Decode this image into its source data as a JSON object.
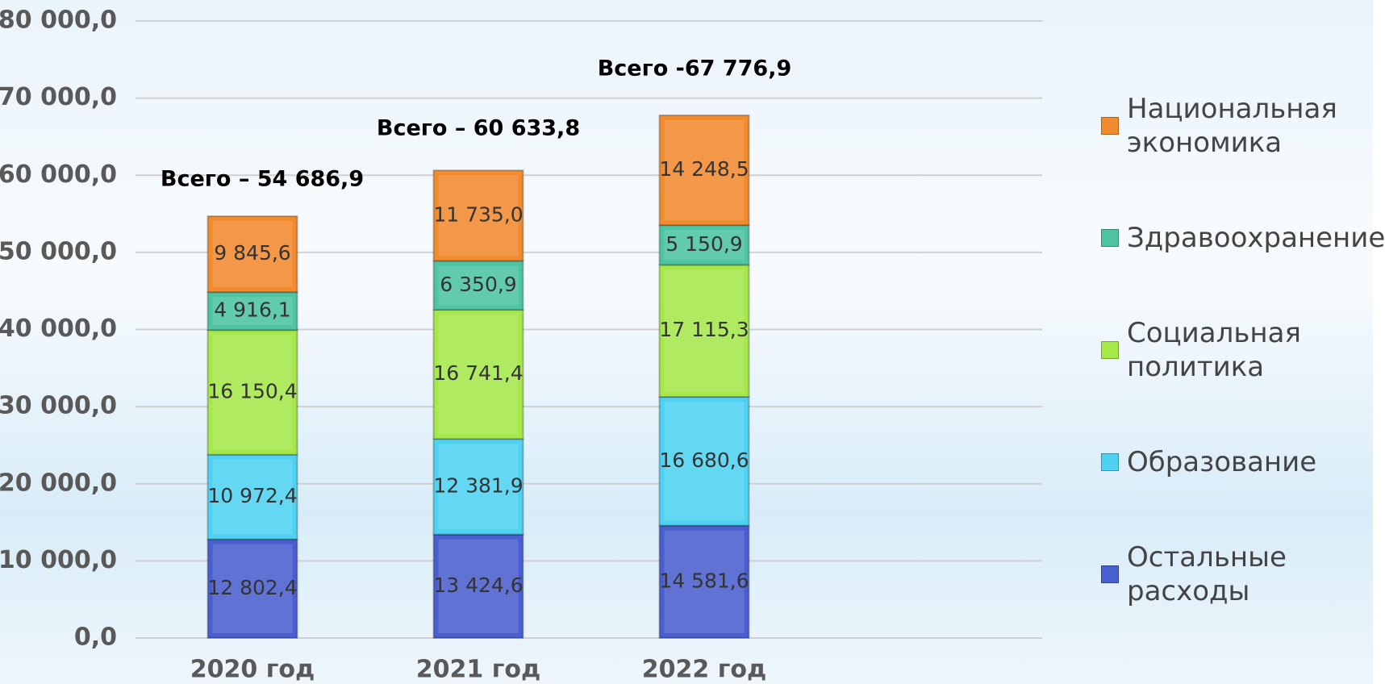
{
  "chart_data": {
    "type": "stacked_bar",
    "categories": [
      "2020 год",
      "2021 год",
      "2022 год"
    ],
    "series": [
      {
        "name": "Остальные расходы",
        "color": "#4a5fcf",
        "values": [
          12802.4,
          13424.6,
          14581.6
        ],
        "value_labels": [
          "12 802,4",
          "13 424,6",
          "14 581,6"
        ]
      },
      {
        "name": "Образование",
        "color": "#4fd2f2",
        "values": [
          10972.4,
          12381.9,
          16680.6
        ],
        "value_labels": [
          "10 972,4",
          "12 381,9",
          "16 680,6"
        ]
      },
      {
        "name": "Социальная политика",
        "color": "#a6e84a",
        "values": [
          16150.4,
          16741.4,
          17115.3
        ],
        "value_labels": [
          "16 150,4",
          "16 741,4",
          "17 115,3"
        ]
      },
      {
        "name": "Здравоохранение",
        "color": "#4ec4a2",
        "values": [
          4916.1,
          6350.9,
          5150.9
        ],
        "value_labels": [
          "4 916,1",
          "6 350,9",
          "5 150,9"
        ]
      },
      {
        "name": "Национальная экономика",
        "color": "#f28a30",
        "values": [
          9845.6,
          11735.0,
          14248.5
        ],
        "value_labels": [
          "9 845,6",
          "11 735,0",
          "14 248,5"
        ]
      }
    ],
    "annotations": [
      "Всего – 54 686,9",
      "Всего – 60 633,8",
      "Всего -67 776,9"
    ],
    "ylim": [
      0,
      80000
    ],
    "yticks": [
      {
        "value": 0,
        "label": "0,0"
      },
      {
        "value": 10000,
        "label": "10 000,0"
      },
      {
        "value": 20000,
        "label": "20 000,0"
      },
      {
        "value": 30000,
        "label": "30 000,0"
      },
      {
        "value": 40000,
        "label": "40 000,0"
      },
      {
        "value": 50000,
        "label": "50 000,0"
      },
      {
        "value": 60000,
        "label": "60 000,0"
      },
      {
        "value": 70000,
        "label": "70 000,0"
      },
      {
        "value": 80000,
        "label": "80 000,0"
      }
    ],
    "grid": true,
    "legend": "right"
  }
}
